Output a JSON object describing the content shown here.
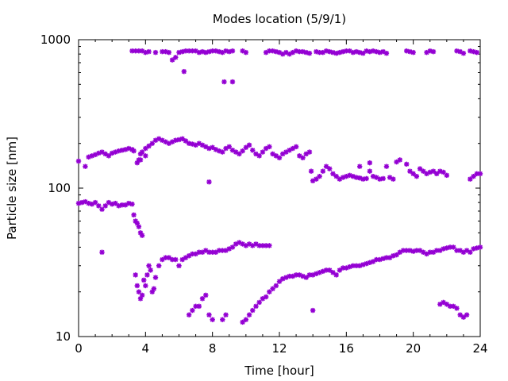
{
  "chart_data": {
    "type": "scatter",
    "title": "Modes location (5/9/1)",
    "xlabel": "Time [hour]",
    "ylabel": "Particle size [nm]",
    "xlim": [
      0,
      24
    ],
    "ylim": [
      10,
      1000
    ],
    "yscale": "log",
    "x_ticks": [
      0,
      4,
      8,
      12,
      16,
      20,
      24
    ],
    "x_tick_labels": [
      "0",
      "4",
      "8",
      "12",
      "16",
      "20",
      "24"
    ],
    "y_ticks": [
      10,
      100,
      1000
    ],
    "y_tick_labels": [
      "10",
      "100",
      "1000"
    ],
    "grid": false,
    "marker": "star",
    "color": "#9400d3",
    "series": [
      {
        "x": [
          3.2,
          3.4,
          3.6,
          3.8,
          4.0,
          4.2,
          4.6,
          5.0,
          5.2,
          5.4,
          5.6,
          5.8,
          6.0,
          6.2,
          6.4,
          6.6,
          6.8,
          7.0,
          7.2,
          7.4,
          7.6,
          7.8,
          8.0,
          8.2,
          8.4,
          8.6,
          8.8,
          9.0,
          9.2,
          9.8,
          10.0,
          11.2,
          11.4,
          11.6,
          11.8,
          12.0,
          12.2,
          12.4,
          12.6,
          12.8,
          13.0,
          13.2,
          13.4,
          13.6,
          13.8,
          14.2,
          14.4,
          14.6,
          14.8,
          15.0,
          15.2,
          15.4,
          15.6,
          15.8,
          16.0,
          16.2,
          16.4,
          16.6,
          16.8,
          17.0,
          17.2,
          17.4,
          17.6,
          17.8,
          18.0,
          18.2,
          18.4,
          19.6,
          19.8,
          20.0,
          20.8,
          21.0,
          21.2,
          22.6,
          22.8,
          23.0,
          23.4,
          23.6,
          23.8
        ],
        "y": [
          840,
          840,
          840,
          840,
          820,
          830,
          820,
          830,
          830,
          820,
          730,
          760,
          820,
          830,
          840,
          840,
          840,
          840,
          820,
          830,
          820,
          830,
          840,
          840,
          830,
          820,
          840,
          830,
          840,
          840,
          820,
          820,
          840,
          840,
          830,
          820,
          800,
          820,
          800,
          820,
          840,
          830,
          830,
          820,
          810,
          830,
          820,
          820,
          840,
          830,
          820,
          810,
          820,
          830,
          840,
          840,
          820,
          830,
          820,
          810,
          840,
          830,
          840,
          830,
          820,
          830,
          810,
          840,
          830,
          820,
          820,
          840,
          830,
          840,
          830,
          810,
          840,
          830,
          820
        ]
      },
      {
        "x": [
          6.3,
          8.7,
          9.2
        ],
        "y": [
          610,
          520,
          520
        ]
      },
      {
        "x": [
          0.0,
          0.4,
          0.6,
          0.8,
          1.0,
          1.2,
          1.4,
          1.6,
          1.8,
          2.0,
          2.2,
          2.4,
          2.6,
          2.8,
          3.0,
          3.2,
          3.3,
          3.5,
          3.6,
          3.7,
          3.8,
          4.0,
          4.2,
          4.4,
          4.6,
          4.8,
          5.0,
          5.2,
          5.4,
          5.6,
          5.8,
          6.0,
          6.2,
          6.4,
          6.6,
          6.8,
          7.0,
          7.2,
          7.4,
          7.6,
          7.8,
          8.0,
          8.2,
          8.4,
          8.6,
          8.8,
          9.0,
          9.2,
          9.4,
          9.6,
          9.8,
          10.0,
          10.2,
          10.4,
          10.6,
          10.8,
          11.0,
          11.2,
          11.4,
          11.6,
          11.8,
          12.0,
          12.2,
          12.4,
          12.6,
          12.8,
          13.0,
          13.2,
          13.4,
          13.6,
          13.8
        ],
        "y": [
          152,
          140,
          162,
          165,
          168,
          172,
          175,
          170,
          165,
          172,
          175,
          178,
          180,
          182,
          185,
          182,
          178,
          148,
          155,
          170,
          175,
          185,
          192,
          200,
          210,
          215,
          210,
          205,
          200,
          205,
          210,
          212,
          215,
          208,
          200,
          198,
          195,
          200,
          195,
          190,
          185,
          188,
          182,
          178,
          175,
          185,
          190,
          180,
          175,
          170,
          178,
          188,
          195,
          180,
          170,
          165,
          175,
          185,
          190,
          170,
          165,
          160,
          170,
          175,
          180,
          185,
          190,
          165,
          160,
          170,
          175
        ]
      },
      {
        "x": [
          13.9,
          14.0,
          14.2,
          14.4,
          14.6,
          14.8,
          15.0,
          15.2,
          15.4,
          15.6,
          15.8,
          16.0,
          16.2,
          16.4,
          16.6,
          16.8,
          17.0,
          17.2,
          17.4,
          17.6,
          17.8,
          18.0,
          18.2,
          18.4,
          18.6,
          18.8,
          19.0,
          19.2,
          19.6,
          19.8,
          20.0,
          20.2,
          20.4,
          20.6,
          20.8,
          21.0,
          21.2,
          21.4,
          21.6,
          21.8,
          22.0,
          23.4,
          23.6,
          23.8,
          24.0
        ],
        "y": [
          130,
          112,
          115,
          120,
          130,
          140,
          135,
          125,
          120,
          115,
          118,
          120,
          122,
          120,
          118,
          117,
          115,
          116,
          130,
          120,
          118,
          115,
          116,
          140,
          118,
          115,
          150,
          155,
          145,
          130,
          125,
          120,
          135,
          130,
          125,
          128,
          130,
          125,
          130,
          128,
          122,
          115,
          120,
          125,
          125
        ]
      },
      {
        "x": [
          3.7,
          4.0,
          7.8,
          16.8,
          17.4
        ],
        "y": [
          155,
          165,
          110,
          140,
          148
        ]
      },
      {
        "x": [
          0.0,
          0.2,
          0.4,
          0.6,
          0.8,
          1.0,
          1.2,
          1.4,
          1.6,
          1.8,
          2.0,
          2.2,
          2.4,
          2.6,
          2.8,
          3.0,
          3.2,
          3.3,
          3.4,
          3.5,
          3.6,
          3.7,
          3.8,
          1.4
        ],
        "y": [
          79,
          80,
          81,
          79,
          78,
          80,
          76,
          72,
          76,
          80,
          78,
          79,
          76,
          77,
          77,
          79,
          78,
          66,
          60,
          58,
          55,
          50,
          48,
          37
        ]
      },
      {
        "x": [
          3.4,
          3.5,
          3.6,
          3.7,
          3.8,
          3.9,
          4.0,
          4.1,
          4.2,
          4.3,
          4.4,
          4.5,
          4.6,
          4.8,
          5.0,
          5.2,
          5.4,
          5.6,
          5.8,
          6.0,
          6.2,
          6.4,
          6.6,
          6.8,
          7.0,
          7.2,
          7.4,
          7.6,
          7.8,
          8.0,
          8.2,
          8.4,
          8.6,
          8.8,
          9.0,
          9.2,
          9.4,
          9.6,
          9.8,
          10.0,
          10.2,
          10.4,
          10.6,
          10.8,
          11.0,
          11.2,
          11.4
        ],
        "y": [
          26,
          22,
          20,
          18,
          19,
          24,
          22,
          26,
          30,
          28,
          20,
          21,
          25,
          30,
          33,
          34,
          34,
          33,
          33,
          30,
          33,
          34,
          35,
          36,
          36,
          37,
          37,
          38,
          37,
          37,
          37,
          38,
          38,
          38,
          39,
          40,
          42,
          43,
          42,
          41,
          42,
          41,
          42,
          41,
          41,
          41,
          41
        ]
      },
      {
        "x": [
          6.6,
          6.8,
          7.0,
          7.2,
          7.4,
          7.6,
          7.8,
          8.0,
          8.6,
          8.8
        ],
        "y": [
          14,
          15,
          16,
          16,
          18,
          19,
          14,
          13,
          13,
          14
        ]
      },
      {
        "x": [
          9.8,
          10.0,
          10.2,
          10.4,
          10.6,
          10.8,
          11.0,
          11.2,
          11.4,
          11.6,
          11.8,
          12.0,
          12.2,
          12.4,
          12.6,
          12.8,
          13.0,
          13.2,
          13.4,
          13.6,
          13.8,
          14.0,
          14.2,
          14.4,
          14.6,
          14.8,
          15.0,
          15.2,
          15.4,
          15.6,
          15.8,
          16.0,
          16.2,
          16.4,
          16.6,
          16.8,
          17.0,
          17.2,
          17.4,
          17.6,
          17.8,
          18.0,
          18.2,
          18.4,
          18.6,
          18.8,
          19.0,
          19.2,
          19.4,
          19.6,
          19.8,
          20.0,
          20.2,
          20.4,
          20.6,
          20.8,
          21.0,
          21.2,
          21.4,
          21.6,
          21.8,
          22.0,
          22.2,
          22.4,
          22.6,
          22.8,
          23.0,
          23.2,
          23.4,
          23.6,
          23.8,
          24.0
        ],
        "y": [
          12.5,
          13,
          14,
          15,
          16,
          17,
          18,
          18.5,
          20,
          21,
          22,
          23.5,
          24.5,
          25,
          25.5,
          25.5,
          26,
          26,
          25.5,
          25,
          26,
          26,
          26.5,
          27,
          27.5,
          28,
          28,
          27,
          26,
          28,
          29,
          29,
          29.5,
          30,
          30,
          30,
          30.5,
          31,
          31.5,
          32,
          33,
          33,
          33.5,
          34,
          34,
          35,
          35.5,
          37,
          38,
          38,
          38,
          37.5,
          38,
          38,
          37,
          36,
          37,
          37,
          38,
          38,
          39,
          39.5,
          40,
          40,
          38,
          38,
          37,
          38,
          37,
          39,
          39.5,
          40
        ]
      },
      {
        "x": [
          14.0,
          21.6,
          21.8,
          22.0,
          22.2,
          22.4,
          22.6,
          22.8,
          23.0,
          23.2
        ],
        "y": [
          15,
          16.5,
          17,
          16.5,
          16,
          16,
          15.5,
          14,
          13.5,
          14
        ]
      }
    ]
  }
}
